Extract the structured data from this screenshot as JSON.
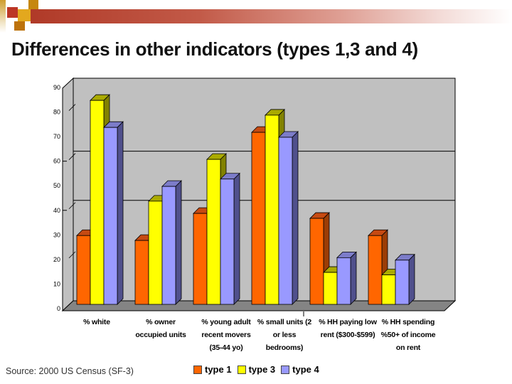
{
  "slide": {
    "title": "Differences in other indicators (types 1,3 and 4)",
    "source_note": "Source: 2000 US Census (SF-3)"
  },
  "theme": {
    "banner_red": "#b03a28",
    "strip_gold": "#cf9d2e",
    "square_red": "#bc3626",
    "square_gold": "#e3a81e",
    "square_amber": "#c6870f",
    "square_burnt": "#bd720b",
    "wall_gray": "#c0c0c0",
    "floor_gray": "#848484",
    "axis_text": "#000000"
  },
  "chart_data": {
    "type": "bar",
    "style": "3d-column",
    "title": "",
    "xlabel": "",
    "ylabel": "",
    "ylim": [
      0,
      90
    ],
    "yticks": [
      0,
      10,
      20,
      30,
      40,
      50,
      60,
      70,
      80,
      90
    ],
    "gridlines_at": [
      40,
      60
    ],
    "legend_position": "bottom",
    "categories": [
      {
        "label": "% white",
        "lines": [
          "% white"
        ]
      },
      {
        "label": "% owner occupied units",
        "lines": [
          "% owner",
          "occupied units"
        ]
      },
      {
        "label": "% young adult recent movers (35-44 yo)",
        "lines": [
          "% young adult",
          "recent movers",
          "(35-44 yo)"
        ]
      },
      {
        "label": "% small units (2 or less bedrooms)",
        "lines": [
          "% small units (2",
          "or less",
          "bedrooms)"
        ]
      },
      {
        "label": "% HH paying low rent ($300-$599)",
        "lines": [
          "% HH paying low",
          "rent ($300-$599)"
        ]
      },
      {
        "label": "% HH spending %50+ of income on rent",
        "lines": [
          "% HH spending",
          "%50+ of income",
          "on rent"
        ]
      }
    ],
    "series": [
      {
        "name": "type 1",
        "color": "#ff6600",
        "top_color": "#c64a12",
        "side_color": "#9c3d05",
        "values": [
          28,
          26,
          37,
          70,
          35,
          28
        ]
      },
      {
        "name": "type 3",
        "color": "#ffff00",
        "top_color": "#abab00",
        "side_color": "#828200",
        "values": [
          83,
          42,
          59,
          77,
          13,
          12
        ]
      },
      {
        "name": "type 4",
        "color": "#9999ff",
        "top_color": "#7c7cc9",
        "side_color": "#50508c",
        "values": [
          72,
          48,
          51,
          68,
          19,
          18
        ]
      }
    ]
  }
}
